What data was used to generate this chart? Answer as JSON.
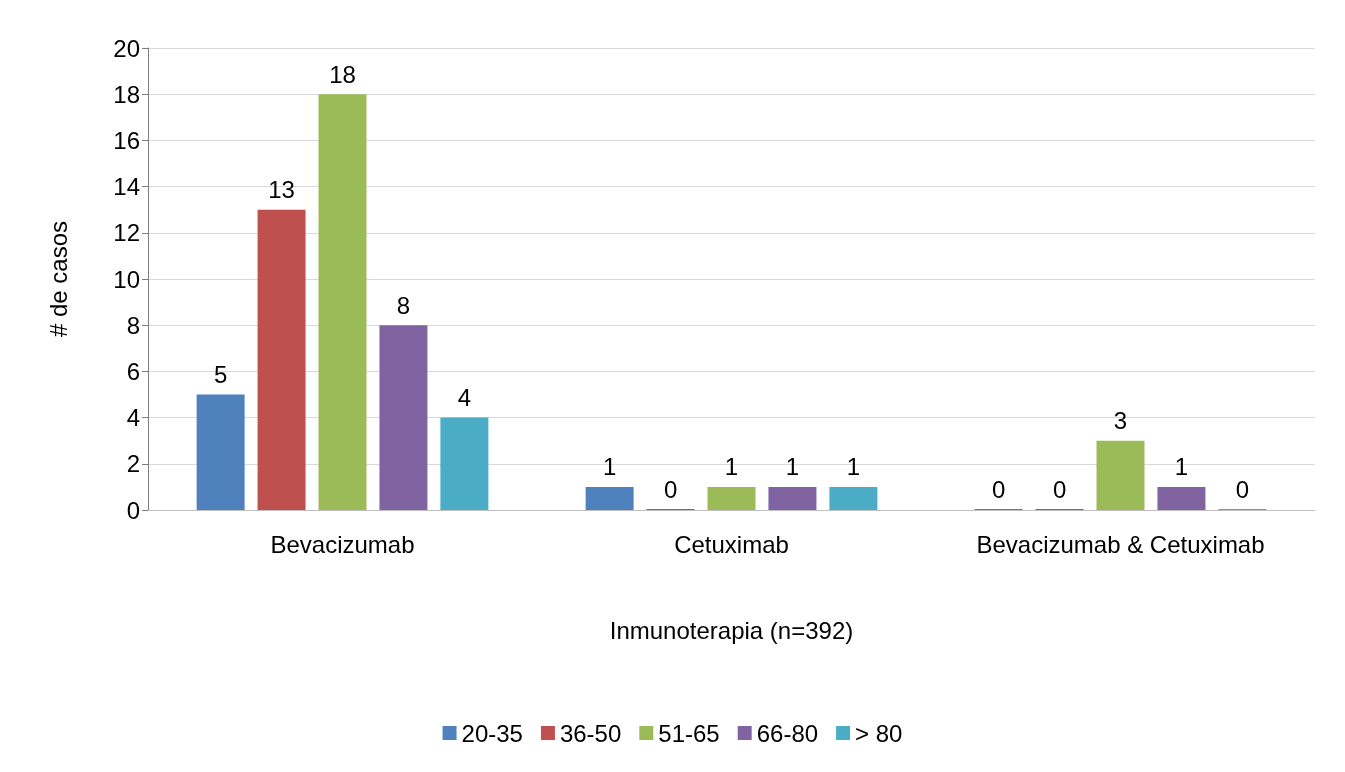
{
  "chart_data": {
    "type": "bar",
    "xlabel": "Inmunoterapia (n=392)",
    "ylabel": "# de casos",
    "categories": [
      "Bevacizumab",
      "Cetuximab",
      "Bevacizumab & Cetuximab"
    ],
    "series": [
      {
        "name": "20-35",
        "color": "#4f81bd",
        "values": [
          5,
          1,
          0
        ]
      },
      {
        "name": "36-50",
        "color": "#c0504d",
        "values": [
          13,
          0,
          0
        ]
      },
      {
        "name": "51-65",
        "color": "#9bbb59",
        "values": [
          18,
          1,
          3
        ]
      },
      {
        "name": "66-80",
        "color": "#8064a2",
        "values": [
          8,
          1,
          1
        ]
      },
      {
        "name": "> 80",
        "color": "#4bacc6",
        "values": [
          4,
          1,
          0
        ]
      }
    ],
    "ylim": [
      0,
      20
    ],
    "yticks": [
      0,
      2,
      4,
      6,
      8,
      10,
      12,
      14,
      16,
      18,
      20
    ],
    "grid": "y",
    "legend": "bottom",
    "data_labels": true
  }
}
